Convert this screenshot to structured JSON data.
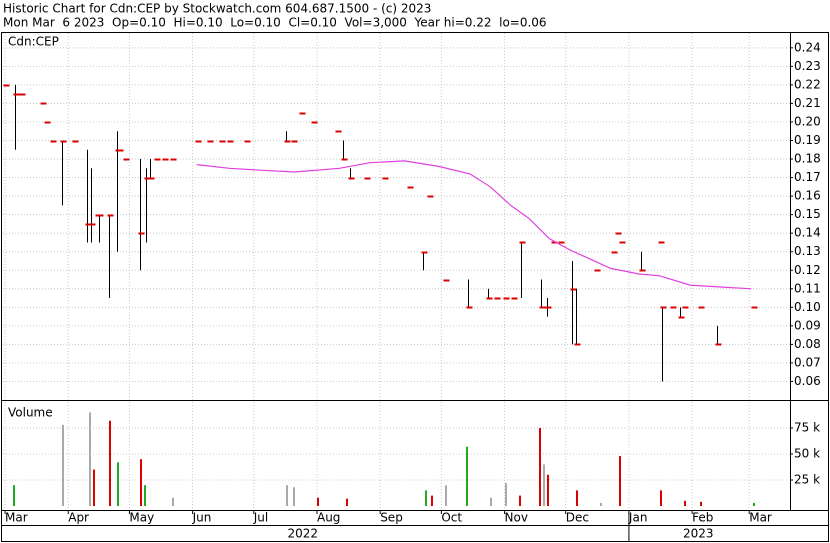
{
  "chart_data": {
    "type": "ohlc",
    "title": "Historic Chart for Cdn:CEP by Stockwatch.com 604.687.1500 - (c) 2023",
    "subtitle": "Mon Mar  6 2023  Op=0.10  Hi=0.10  Lo=0.10  Cl=0.10  Vol=3,000  Year hi=0.22  lo=0.06",
    "symbol": "Cdn:CEP",
    "xlim": [
      -1,
      385
    ],
    "xticks": [
      {
        "value": 0,
        "label": "Mar"
      },
      {
        "value": 31,
        "label": "Apr"
      },
      {
        "value": 61,
        "label": "May"
      },
      {
        "value": 92,
        "label": "Jun"
      },
      {
        "value": 122,
        "label": "Jul"
      },
      {
        "value": 153,
        "label": "Aug"
      },
      {
        "value": 184,
        "label": "Sep"
      },
      {
        "value": 214,
        "label": "Oct"
      },
      {
        "value": 245,
        "label": "Nov"
      },
      {
        "value": 275,
        "label": "Dec"
      },
      {
        "value": 306,
        "label": "Jan"
      },
      {
        "value": 337,
        "label": "Feb"
      },
      {
        "value": 365,
        "label": "Mar"
      }
    ],
    "year_labels": [
      {
        "value": 146,
        "label": "2022"
      },
      {
        "value": 340,
        "label": "2023"
      }
    ],
    "ylim": [
      0.05,
      0.248
    ],
    "yticks": [
      0.06,
      0.07,
      0.08,
      0.09,
      {
        "value": 0.1,
        "label": "0.10"
      },
      0.11,
      0.12,
      0.13,
      0.14,
      0.15,
      0.16,
      0.17,
      0.18,
      0.19,
      {
        "value": 0.2,
        "label": "0.20"
      },
      0.21,
      0.22,
      0.23,
      0.24
    ],
    "grid": true,
    "price": {
      "bar_color": "#000000",
      "close_color": "#dd0000",
      "x": [
        0,
        5,
        8,
        18,
        20,
        23,
        28,
        34,
        40,
        42,
        45,
        46,
        51,
        55,
        56,
        59,
        66,
        69,
        71,
        74,
        78,
        82,
        94,
        100,
        106,
        110,
        118,
        138,
        141,
        145,
        151,
        163,
        166,
        169,
        177,
        186,
        198,
        205,
        208,
        216,
        227,
        237,
        241,
        245,
        249,
        253,
        263,
        266,
        269,
        272,
        278,
        280,
        290,
        298,
        300,
        302,
        312,
        321,
        322,
        327,
        331,
        333,
        341,
        349,
        367
      ],
      "high": [
        0.22,
        0.22,
        0.215,
        0.21,
        0.2,
        0.19,
        0.19,
        0.19,
        0.185,
        0.175,
        0.15,
        0.15,
        0.15,
        0.195,
        0.185,
        0.18,
        0.18,
        0.175,
        0.18,
        0.18,
        0.18,
        0.18,
        0.19,
        0.19,
        0.19,
        0.19,
        0.19,
        0.195,
        0.19,
        0.205,
        0.2,
        0.195,
        0.19,
        0.175,
        0.17,
        0.17,
        0.165,
        0.13,
        0.16,
        0.115,
        0.115,
        0.11,
        0.105,
        0.105,
        0.105,
        0.135,
        0.115,
        0.105,
        0.135,
        0.135,
        0.125,
        0.11,
        0.12,
        0.13,
        0.14,
        0.135,
        0.13,
        0.135,
        0.1,
        0.1,
        0.1,
        0.1,
        0.1,
        0.09,
        0.1
      ],
      "low": [
        0.22,
        0.185,
        0.215,
        0.21,
        0.2,
        0.19,
        0.155,
        0.19,
        0.135,
        0.135,
        0.15,
        0.135,
        0.105,
        0.13,
        0.185,
        0.18,
        0.12,
        0.135,
        0.17,
        0.18,
        0.18,
        0.18,
        0.19,
        0.19,
        0.19,
        0.19,
        0.19,
        0.19,
        0.19,
        0.205,
        0.2,
        0.195,
        0.18,
        0.17,
        0.17,
        0.17,
        0.165,
        0.12,
        0.16,
        0.115,
        0.1,
        0.105,
        0.105,
        0.105,
        0.105,
        0.105,
        0.1,
        0.095,
        0.135,
        0.135,
        0.08,
        0.08,
        0.12,
        0.13,
        0.14,
        0.135,
        0.12,
        0.135,
        0.06,
        0.1,
        0.095,
        0.1,
        0.1,
        0.08,
        0.1
      ],
      "close": [
        0.22,
        0.215,
        0.215,
        0.21,
        0.2,
        0.19,
        0.19,
        0.19,
        0.145,
        0.145,
        0.15,
        0.15,
        0.15,
        0.185,
        0.185,
        0.18,
        0.14,
        0.17,
        0.17,
        0.18,
        0.18,
        0.18,
        0.19,
        0.19,
        0.19,
        0.19,
        0.19,
        0.19,
        0.19,
        0.205,
        0.2,
        0.195,
        0.18,
        0.17,
        0.17,
        0.17,
        0.165,
        0.13,
        0.16,
        0.115,
        0.1,
        0.105,
        0.105,
        0.105,
        0.105,
        0.135,
        0.1,
        0.1,
        0.135,
        0.135,
        0.11,
        0.08,
        0.12,
        0.13,
        0.14,
        0.135,
        0.12,
        0.135,
        0.1,
        0.1,
        0.095,
        0.1,
        0.1,
        0.08,
        0.1
      ]
    },
    "ma": {
      "color": "#e040e0",
      "x": [
        94,
        110,
        125,
        142,
        164,
        179,
        196,
        213,
        228,
        238,
        248,
        257,
        267,
        277,
        287,
        297,
        311,
        321,
        336,
        350,
        366
      ],
      "values": [
        0.177,
        0.175,
        0.174,
        0.173,
        0.175,
        0.178,
        0.179,
        0.176,
        0.172,
        0.165,
        0.155,
        0.148,
        0.137,
        0.131,
        0.126,
        0.121,
        0.118,
        0.117,
        0.112,
        0.111,
        0.11
      ]
    },
    "volume": {
      "label": "Volume",
      "ylim": [
        0,
        100000
      ],
      "yticks": [
        {
          "value": 25000,
          "label": "25 k"
        },
        {
          "value": 50000,
          "label": "50 k"
        },
        {
          "value": 75000,
          "label": "75 k"
        }
      ],
      "x": [
        4,
        28,
        41,
        43,
        51,
        55,
        66,
        68,
        82,
        138,
        141,
        153,
        167,
        206,
        209,
        216,
        226,
        238,
        245,
        252,
        262,
        264,
        266,
        280,
        292,
        301,
        321,
        333,
        341,
        367
      ],
      "values": [
        20000,
        78000,
        90000,
        35000,
        82000,
        42000,
        45000,
        20000,
        8000,
        20000,
        18000,
        8000,
        7000,
        15000,
        10000,
        20000,
        57000,
        8000,
        22000,
        10000,
        75000,
        40000,
        30000,
        15000,
        3000,
        48000,
        15000,
        5000,
        4000,
        3000
      ],
      "colors": [
        "#22aa22",
        "#aaaaaa",
        "#aaaaaa",
        "#dd0000",
        "#dd0000",
        "#22aa22",
        "#dd0000",
        "#22aa22",
        "#aaaaaa",
        "#aaaaaa",
        "#aaaaaa",
        "#dd0000",
        "#dd0000",
        "#22aa22",
        "#dd0000",
        "#aaaaaa",
        "#22aa22",
        "#aaaaaa",
        "#aaaaaa",
        "#dd0000",
        "#dd0000",
        "#aaaaaa",
        "#dd0000",
        "#dd0000",
        "#aaaaaa",
        "#dd0000",
        "#dd0000",
        "#dd0000",
        "#dd0000",
        "#22aa22"
      ]
    }
  }
}
